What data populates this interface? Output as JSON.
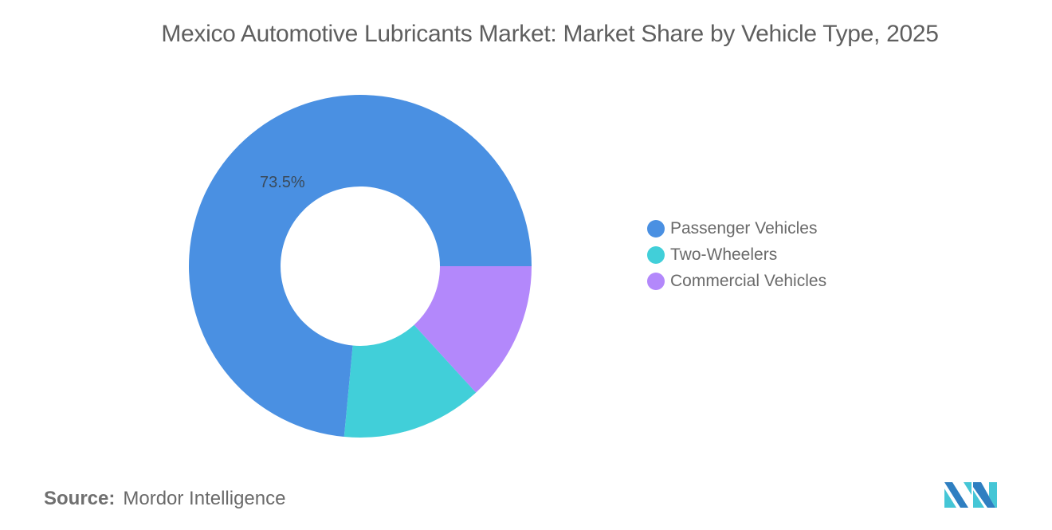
{
  "title": "Mexico Automotive Lubricants Market: Market Share by Vehicle Type, 2025",
  "chart_data": {
    "type": "pie",
    "variant": "donut",
    "title": "Mexico Automotive Lubricants Market: Market Share by Vehicle Type, 2025",
    "categories": [
      "Passenger Vehicles",
      "Two-Wheelers",
      "Commercial Vehicles"
    ],
    "values": [
      73.5,
      13.3,
      13.2
    ],
    "unit": "%",
    "colors": [
      "#4a90e2",
      "#41cfd9",
      "#b388fb"
    ],
    "data_labels": [
      {
        "category": "Passenger Vehicles",
        "text": "73.5%"
      }
    ],
    "legend_position": "right"
  },
  "legend": {
    "items": [
      {
        "label": "Passenger Vehicles",
        "color": "#4a90e2"
      },
      {
        "label": "Two-Wheelers",
        "color": "#41cfd9"
      },
      {
        "label": "Commercial Vehicles",
        "color": "#b388fb"
      }
    ]
  },
  "slice_label": "73.5%",
  "footer": {
    "source_key": "Source:",
    "source_value": "Mordor Intelligence"
  },
  "logo": {
    "icon": "mordor-intelligence-logo",
    "colors": [
      "#2f7fc1",
      "#45c6d6"
    ]
  }
}
